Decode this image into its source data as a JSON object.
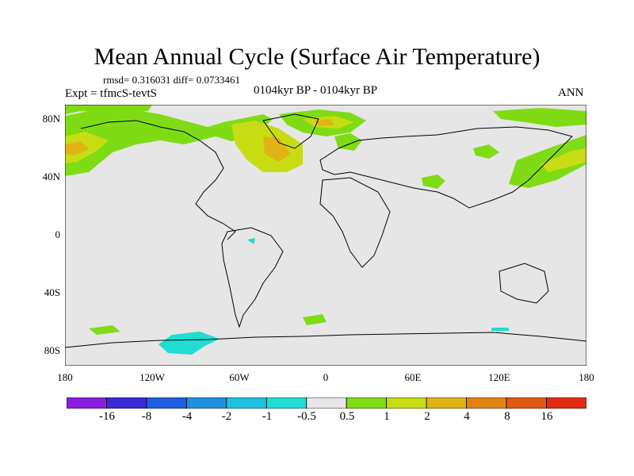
{
  "title": "Mean Annual Cycle (Surface Air Temperature)",
  "stats_line": "rmsd= 0.316031 diff= 0.0733461",
  "experiment": "Expt = tfmcS-tevtS",
  "period": "0104kyr BP - 0104kyr BP",
  "season": "ANN",
  "lat_labels": [
    "80N",
    "40N",
    "0",
    "40S",
    "80S"
  ],
  "lon_labels": [
    "180",
    "120W",
    "60W",
    "0",
    "60E",
    "120E",
    "180"
  ],
  "colorbar": {
    "labels": [
      "-16",
      "-8",
      "-4",
      "-2",
      "-1",
      "-0.5",
      "0.5",
      "1",
      "2",
      "4",
      "8",
      "16"
    ],
    "colors": [
      "#8b1fe0",
      "#3b2bd6",
      "#1f5ee0",
      "#1f90e0",
      "#1ec0e0",
      "#20dcd2",
      "#e6e6e6",
      "#7fdc14",
      "#c8dc14",
      "#e0b414",
      "#e08214",
      "#e05a14",
      "#e02c10"
    ]
  },
  "map": {
    "background_color": "#e6e6e6",
    "coastline_color": "#000000"
  }
}
